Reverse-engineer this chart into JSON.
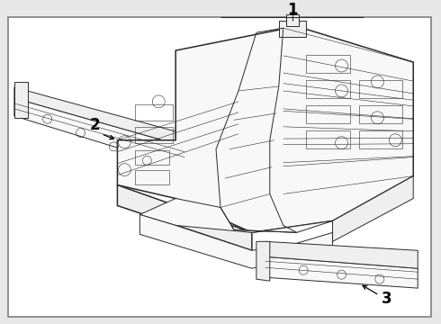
{
  "bg_color": "#e8e8e8",
  "box_bg": "#ffffff",
  "box_edge": "#888888",
  "line_color": "#2a2a2a",
  "fill_light": "#f8f8f8",
  "fill_mid": "#efefef",
  "label_1": "1",
  "label_2": "2",
  "label_3": "3",
  "lw_heavy": 1.1,
  "lw_med": 0.7,
  "lw_thin": 0.4,
  "label_fs": 12
}
